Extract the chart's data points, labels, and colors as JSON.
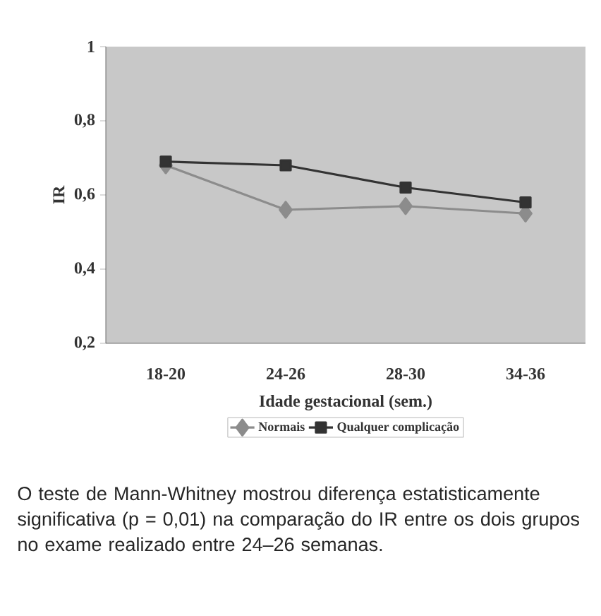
{
  "chart_data": {
    "type": "line",
    "xlabel": "Idade gestacional (sem.)",
    "ylabel": "IR",
    "categories": [
      "18-20",
      "24-26",
      "28-30",
      "34-36"
    ],
    "series": [
      {
        "name": "Normais",
        "color": "#8c8c8c",
        "marker": "diamond",
        "values": [
          0.68,
          0.56,
          0.57,
          0.55
        ]
      },
      {
        "name": "Qualquer complicação",
        "color": "#333333",
        "marker": "square",
        "values": [
          0.69,
          0.68,
          0.62,
          0.58
        ]
      }
    ],
    "ylim": [
      0.2,
      1
    ],
    "yticks": [
      {
        "value": 0.2,
        "label": "0,2"
      },
      {
        "value": 0.4,
        "label": "0,4"
      },
      {
        "value": 0.6,
        "label": "0,6"
      },
      {
        "value": 0.8,
        "label": "0,8"
      },
      {
        "value": 1,
        "label": "1"
      }
    ],
    "grid": false,
    "legend": "bottom",
    "annotations": [
      "O teste de Mann-Whitney mostrou diferença estatisticamente significativa (p = 0,01) na comparação do IR entre os dois grupos no exame realizado entre 24–26 semanas."
    ]
  }
}
